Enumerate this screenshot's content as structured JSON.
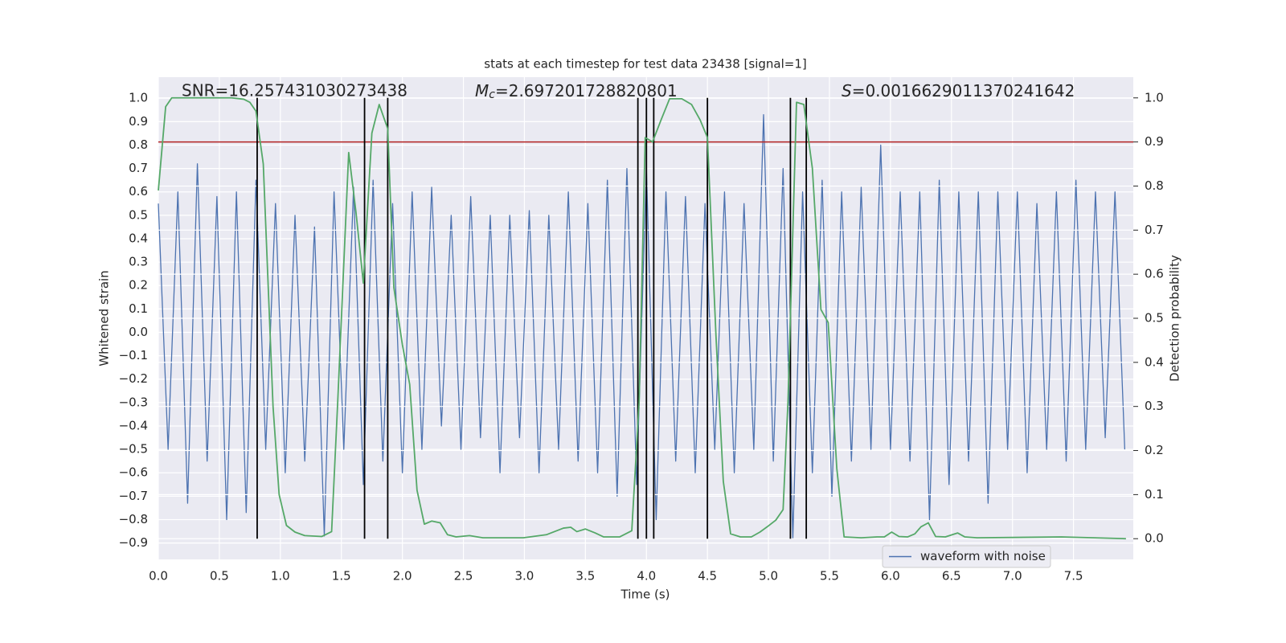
{
  "chart_data": {
    "type": "line",
    "title": "stats at each timestep for test data 23438 [signal=1]",
    "xlabel": "Time (s)",
    "ylabel": "Whitened strain",
    "y2label": "Detection probability",
    "annotations": [
      {
        "text": "SNR=16.257431030273438"
      },
      {
        "symbol": "M",
        "subscript": "c",
        "text": "=2.697201728820801"
      },
      {
        "symbol": "S",
        "text": "=0.0016629011370241642"
      }
    ],
    "xlim": [
      0,
      7.99
    ],
    "ylim": [
      -0.97,
      1.09
    ],
    "y2lim": [
      -0.047,
      1.047
    ],
    "xticks": [
      {
        "value": 0,
        "label": "0.0"
      },
      0.5,
      {
        "value": 1,
        "label": "1.0"
      },
      1.5,
      {
        "value": 2,
        "label": "2.0"
      },
      2.5,
      {
        "value": 3,
        "label": "3.0"
      },
      3.5,
      {
        "value": 4,
        "label": "4.0"
      },
      4.5,
      {
        "value": 5,
        "label": "5.0"
      },
      5.5,
      {
        "value": 6,
        "label": "6.0"
      },
      6.5,
      {
        "value": 7,
        "label": "7.0"
      },
      7.5
    ],
    "yticks": [
      {
        "value": -0.9,
        "label": "−0.9"
      },
      {
        "value": -0.8,
        "label": "−0.8"
      },
      {
        "value": -0.7,
        "label": "−0.7"
      },
      {
        "value": -0.6,
        "label": "−0.6"
      },
      {
        "value": -0.5,
        "label": "−0.5"
      },
      {
        "value": -0.4,
        "label": "−0.4"
      },
      {
        "value": -0.3,
        "label": "−0.3"
      },
      {
        "value": -0.2,
        "label": "−0.2"
      },
      {
        "value": -0.1,
        "label": "−0.1"
      },
      {
        "value": 0,
        "label": "0.0"
      },
      0.1,
      0.2,
      0.3,
      0.4,
      0.5,
      0.6,
      0.7,
      0.8,
      0.9,
      {
        "value": 1,
        "label": "1.0"
      }
    ],
    "y2ticks": [
      {
        "value": 0,
        "label": "0.0"
      },
      0.1,
      0.2,
      0.3,
      0.4,
      0.5,
      0.6,
      0.7,
      0.8,
      0.9,
      {
        "value": 1,
        "label": "1.0"
      }
    ],
    "grid": true,
    "legend": "lower right",
    "series": [
      {
        "name": "waveform with noise",
        "color": "#4c72b0",
        "x": [
          0,
          0.08,
          0.16,
          0.24,
          0.32,
          0.4,
          0.48,
          0.56,
          0.64,
          0.72,
          0.8,
          0.88,
          0.96,
          1.04,
          1.12,
          1.2,
          1.28,
          1.36,
          1.44,
          1.52,
          1.6,
          1.68,
          1.76,
          1.84,
          1.92,
          2,
          2.08,
          2.16,
          2.24,
          2.32,
          2.4,
          2.48,
          2.56,
          2.64,
          2.72,
          2.8,
          2.88,
          2.96,
          3.04,
          3.12,
          3.2,
          3.28,
          3.36,
          3.44,
          3.52,
          3.6,
          3.68,
          3.76,
          3.84,
          3.92,
          4,
          4.08,
          4.16,
          4.24,
          4.32,
          4.4,
          4.48,
          4.56,
          4.64,
          4.72,
          4.8,
          4.88,
          4.96,
          5.04,
          5.12,
          5.2,
          5.28,
          5.36,
          5.44,
          5.52,
          5.6,
          5.68,
          5.76,
          5.84,
          5.92,
          6,
          6.08,
          6.16,
          6.24,
          6.32,
          6.4,
          6.48,
          6.56,
          6.64,
          6.72,
          6.8,
          6.88,
          6.96,
          7.04,
          7.12,
          7.2,
          7.28,
          7.36,
          7.44,
          7.52,
          7.6,
          7.68,
          7.76,
          7.84,
          7.92
        ],
        "values": [
          0.55,
          -0.5,
          0.6,
          -0.73,
          0.72,
          -0.55,
          0.58,
          -0.8,
          0.6,
          -0.77,
          0.65,
          -0.5,
          0.55,
          -0.6,
          0.5,
          -0.55,
          0.45,
          -0.87,
          0.6,
          -0.5,
          0.62,
          -0.65,
          0.65,
          -0.55,
          0.55,
          -0.6,
          0.6,
          -0.5,
          0.62,
          -0.4,
          0.5,
          -0.5,
          0.58,
          -0.45,
          0.5,
          -0.6,
          0.5,
          -0.45,
          0.52,
          -0.6,
          0.5,
          -0.5,
          0.6,
          -0.55,
          0.55,
          -0.6,
          0.65,
          -0.7,
          0.7,
          -0.65,
          0.7,
          -0.8,
          0.6,
          -0.55,
          0.58,
          -0.6,
          0.55,
          -0.5,
          0.6,
          -0.6,
          0.55,
          -0.5,
          0.93,
          -0.55,
          0.7,
          -0.88,
          0.6,
          -0.6,
          0.65,
          -0.7,
          0.6,
          -0.55,
          0.62,
          -0.5,
          0.8,
          -0.5,
          0.6,
          -0.55,
          0.6,
          -0.8,
          0.65,
          -0.65,
          0.6,
          -0.55,
          0.6,
          -0.73,
          0.6,
          -0.5,
          0.6,
          -0.6,
          0.55,
          -0.5,
          0.6,
          -0.55,
          0.65,
          -0.5,
          0.6,
          -0.45,
          0.6,
          -0.5
        ]
      },
      {
        "color": "#55a868",
        "axis": "y2",
        "x": [
          0,
          0.06,
          0.11,
          0.2,
          0.4,
          0.6,
          0.7,
          0.75,
          0.8,
          0.86,
          0.94,
          0.99,
          1.05,
          1.12,
          1.2,
          1.34,
          1.42,
          1.47,
          1.56,
          1.62,
          1.68,
          1.75,
          1.81,
          1.88,
          1.93,
          2,
          2.06,
          2.12,
          2.18,
          2.24,
          2.31,
          2.37,
          2.44,
          2.55,
          2.66,
          2.99,
          3.18,
          3.32,
          3.38,
          3.43,
          3.5,
          3.58,
          3.65,
          3.78,
          3.88,
          3.94,
          3.99,
          4.05,
          4.12,
          4.19,
          4.29,
          4.37,
          4.44,
          4.5,
          4.57,
          4.63,
          4.69,
          4.77,
          4.86,
          4.93,
          4.99,
          5.06,
          5.12,
          5.16,
          5.23,
          5.29,
          5.36,
          5.43,
          5.49,
          5.56,
          5.62,
          5.76,
          5.89,
          5.95,
          6.01,
          6.07,
          6.14,
          6.2,
          6.25,
          6.31,
          6.37,
          6.45,
          6.55,
          6.61,
          6.71,
          7.4,
          7.93
        ],
        "values": [
          0.79,
          0.98,
          1,
          1,
          1,
          1,
          0.997,
          0.99,
          0.97,
          0.85,
          0.3,
          0.1,
          0.03,
          0.015,
          0.007,
          0.005,
          0.016,
          0.31,
          0.876,
          0.74,
          0.58,
          0.92,
          0.985,
          0.93,
          0.57,
          0.44,
          0.35,
          0.11,
          0.033,
          0.04,
          0.036,
          0.009,
          0.004,
          0.007,
          0.002,
          0.002,
          0.009,
          0.024,
          0.026,
          0.016,
          0.022,
          0.013,
          0.004,
          0.004,
          0.018,
          0.31,
          0.91,
          0.9,
          0.95,
          0.998,
          0.998,
          0.985,
          0.95,
          0.91,
          0.46,
          0.13,
          0.011,
          0.004,
          0.004,
          0.015,
          0.027,
          0.042,
          0.066,
          0.31,
          0.99,
          0.985,
          0.84,
          0.52,
          0.49,
          0.16,
          0.004,
          0.002,
          0.004,
          0.004,
          0.015,
          0.005,
          0.004,
          0.011,
          0.027,
          0.036,
          0.005,
          0.004,
          0.013,
          0.004,
          0.002,
          0.004,
          0
        ]
      }
    ],
    "threshold": {
      "value": 0.9,
      "axis": "y2",
      "color": "#b22222"
    },
    "vlines": {
      "color": "#000000",
      "axis": "y2",
      "x": [
        0.81,
        1.69,
        1.88,
        3.93,
        4.0,
        4.06,
        4.5,
        5.18,
        5.31
      ],
      "span": [
        0,
        1
      ]
    }
  }
}
